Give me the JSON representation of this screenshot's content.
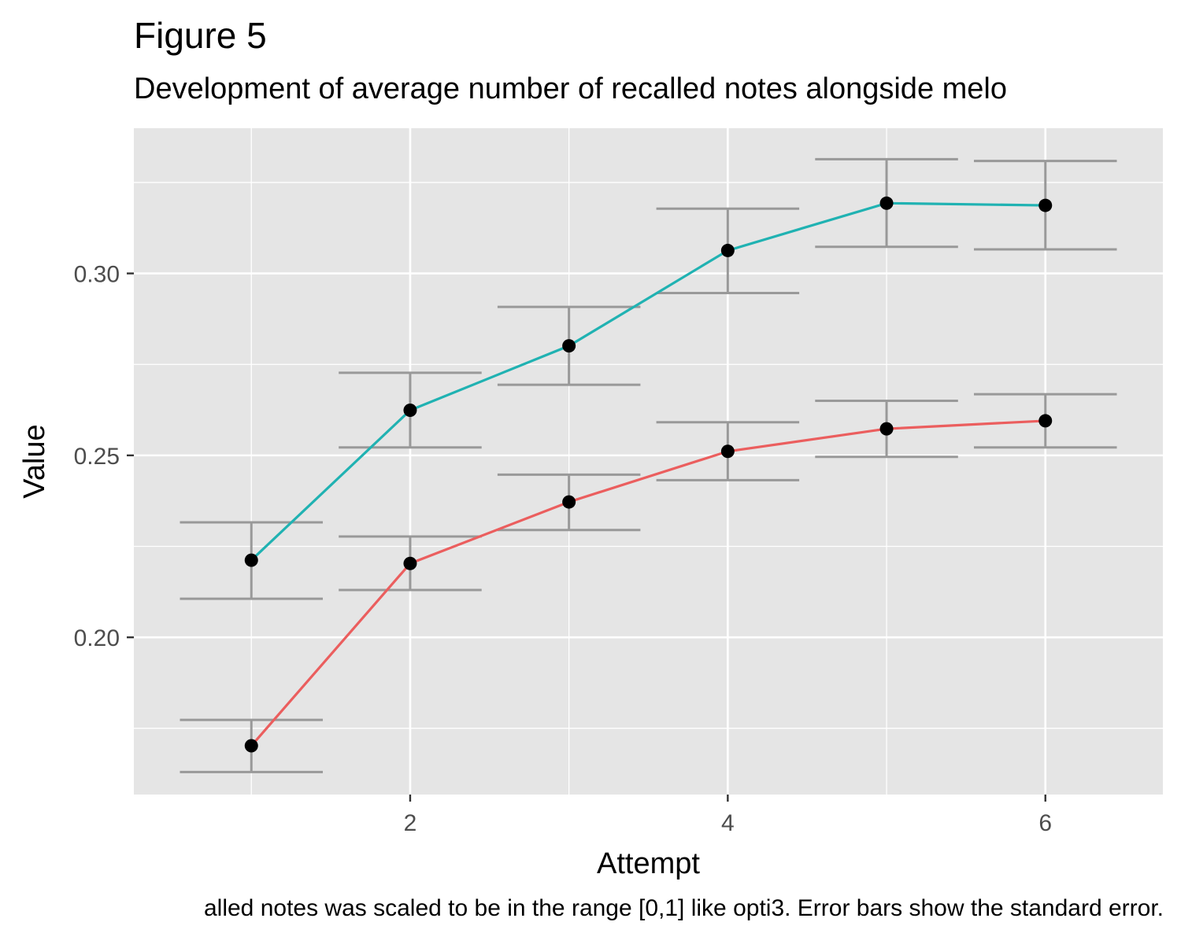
{
  "title": "Figure 5",
  "subtitle": "Development of average number of recalled notes alongside melo",
  "caption": "alled notes was scaled to be in the range [0,1] like opti3. Error bars show the standard error.",
  "colors": {
    "panel_background": "#e5e5e5",
    "grid": "#ffffff",
    "error_bar": "#999999",
    "point": "#000000",
    "series_1": "#20b2b2",
    "series_2": "#eb5e5e"
  },
  "chart_data": {
    "type": "line",
    "xlabel": "Attempt",
    "ylabel": "Value",
    "xlim": [
      0.26,
      6.74
    ],
    "ylim": [
      0.1568,
      0.3399
    ],
    "x_ticks": [
      2,
      4,
      6
    ],
    "x_tick_labels": [
      "2",
      "4",
      "6"
    ],
    "y_ticks": [
      0.2,
      0.25,
      0.3
    ],
    "y_tick_labels": [
      "0.20",
      "0.25",
      "0.30"
    ],
    "grid": true,
    "legend": "none",
    "series": [
      {
        "color": "#20b2b2",
        "x": [
          1,
          2,
          3,
          4,
          5,
          6
        ],
        "values": [
          0.2212,
          0.2624,
          0.2801,
          0.3063,
          0.3193,
          0.3187
        ],
        "error_low": [
          0.2106,
          0.2522,
          0.2694,
          0.2946,
          0.3073,
          0.3066
        ],
        "error_high": [
          0.2316,
          0.2727,
          0.2908,
          0.3178,
          0.3314,
          0.3309
        ]
      },
      {
        "color": "#eb5e5e",
        "x": [
          1,
          2,
          3,
          4,
          5,
          6
        ],
        "values": [
          0.1702,
          0.2203,
          0.2372,
          0.2511,
          0.2573,
          0.2595
        ],
        "error_low": [
          0.163,
          0.213,
          0.2295,
          0.2432,
          0.2496,
          0.2522
        ],
        "error_high": [
          0.1773,
          0.2277,
          0.2447,
          0.2591,
          0.265,
          0.2668
        ]
      }
    ]
  }
}
